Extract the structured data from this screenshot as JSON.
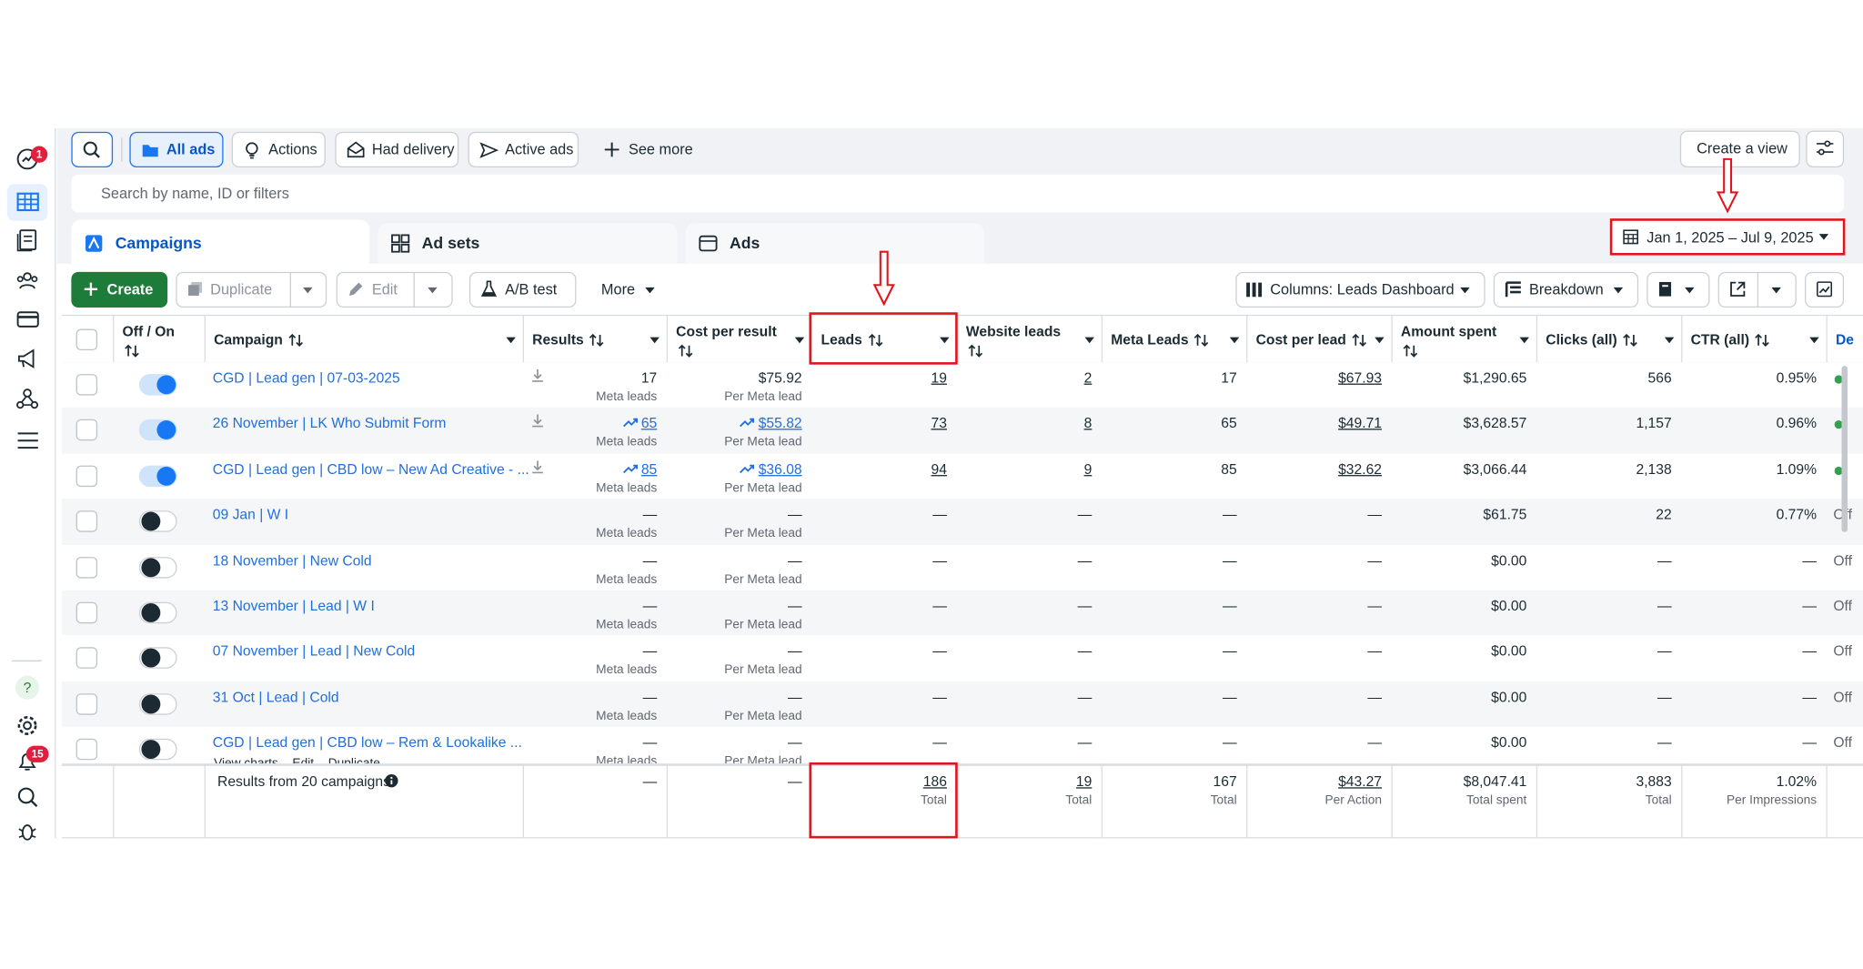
{
  "sidebar": {
    "notification_badge": "1",
    "alerts_badge": "15"
  },
  "toolbar": {
    "filters": [
      "All ads",
      "Actions",
      "Had delivery",
      "Active ads",
      "See more"
    ],
    "create_view": "Create a view"
  },
  "search_placeholder": "Search by name, ID or filters",
  "tabs": [
    "Campaigns",
    "Ad sets",
    "Ads"
  ],
  "date_range": "Jan 1, 2025 – Jul 9, 2025",
  "actions": {
    "create": "Create",
    "duplicate": "Duplicate",
    "edit": "Edit",
    "ab_test": "A/B test",
    "more": "More",
    "columns": "Columns: Leads Dashboard",
    "breakdown": "Breakdown"
  },
  "table": {
    "headers": [
      "Off / On",
      "Campaign",
      "Results",
      "Cost per result",
      "Leads",
      "Website leads",
      "Meta Leads",
      "Cost per lead",
      "Amount spent",
      "Clicks (all)",
      "CTR (all)",
      "De"
    ],
    "rows": [
      {
        "on": true,
        "trend": false,
        "campaign": "CGD | Lead gen | 07-03-2025",
        "results": "17",
        "results_label": "Meta leads",
        "cost_per_result": "$75.92",
        "cost_per_result_label": "Per Meta lead",
        "leads": "19",
        "website_leads": "2",
        "meta_leads": "17",
        "cost_per_lead": "$67.93",
        "amount_spent": "$1,290.65",
        "clicks": "566",
        "ctr": "0.95%"
      },
      {
        "on": true,
        "trend": true,
        "campaign": "26 November | LK Who Submit Form",
        "results": "65",
        "results_label": "Meta leads",
        "cost_per_result": "$55.82",
        "cost_per_result_label": "Per Meta lead",
        "leads": "73",
        "website_leads": "8",
        "meta_leads": "65",
        "cost_per_lead": "$49.71",
        "amount_spent": "$3,628.57",
        "clicks": "1,157",
        "ctr": "0.96%"
      },
      {
        "on": true,
        "trend": true,
        "campaign": "CGD | Lead gen | CBD low – New Ad Creative - ...",
        "results": "85",
        "results_label": "Meta leads",
        "cost_per_result": "$36.08",
        "cost_per_result_label": "Per Meta lead",
        "leads": "94",
        "website_leads": "9",
        "meta_leads": "85",
        "cost_per_lead": "$32.62",
        "amount_spent": "$3,066.44",
        "clicks": "2,138",
        "ctr": "1.09%"
      },
      {
        "on": false,
        "trend": false,
        "campaign": "09 Jan | W I",
        "results": "—",
        "results_label": "Meta leads",
        "cost_per_result": "—",
        "cost_per_result_label": "Per Meta lead",
        "leads": "—",
        "website_leads": "—",
        "meta_leads": "—",
        "cost_per_lead": "—",
        "amount_spent": "$61.75",
        "clicks": "22",
        "ctr": "0.77%",
        "delivery": "Off"
      },
      {
        "on": false,
        "trend": false,
        "campaign": "18 November | New Cold",
        "results": "—",
        "results_label": "Meta leads",
        "cost_per_result": "—",
        "cost_per_result_label": "Per Meta lead",
        "leads": "—",
        "website_leads": "—",
        "meta_leads": "—",
        "cost_per_lead": "—",
        "amount_spent": "$0.00",
        "clicks": "—",
        "ctr": "—",
        "delivery": "Off"
      },
      {
        "on": false,
        "trend": false,
        "campaign": "13 November | Lead | W I",
        "results": "—",
        "results_label": "Meta leads",
        "cost_per_result": "—",
        "cost_per_result_label": "Per Meta lead",
        "leads": "—",
        "website_leads": "—",
        "meta_leads": "—",
        "cost_per_lead": "—",
        "amount_spent": "$0.00",
        "clicks": "—",
        "ctr": "—",
        "delivery": "Off"
      },
      {
        "on": false,
        "trend": false,
        "campaign": "07 November | Lead | New Cold",
        "results": "—",
        "results_label": "Meta leads",
        "cost_per_result": "—",
        "cost_per_result_label": "Per Meta lead",
        "leads": "—",
        "website_leads": "—",
        "meta_leads": "—",
        "cost_per_lead": "—",
        "amount_spent": "$0.00",
        "clicks": "—",
        "ctr": "—",
        "delivery": "Off"
      },
      {
        "on": false,
        "trend": false,
        "campaign": "31 Oct | Lead | Cold",
        "results": "—",
        "results_label": "Meta leads",
        "cost_per_result": "—",
        "cost_per_result_label": "Per Meta lead",
        "leads": "—",
        "website_leads": "—",
        "meta_leads": "—",
        "cost_per_lead": "—",
        "amount_spent": "$0.00",
        "clicks": "—",
        "ctr": "—",
        "delivery": "Off"
      },
      {
        "on": false,
        "trend": false,
        "campaign": "CGD | Lead gen | CBD low – Rem & Lookalike ...",
        "actions": [
          "View charts",
          "Edit",
          "Duplicate"
        ],
        "results": "—",
        "results_label": "Meta leads",
        "cost_per_result": "—",
        "cost_per_result_label": "Per Meta lead",
        "leads": "—",
        "website_leads": "—",
        "meta_leads": "—",
        "cost_per_lead": "—",
        "amount_spent": "$0.00",
        "clicks": "—",
        "ctr": "—",
        "delivery": "Off"
      }
    ],
    "footer": {
      "label": "Results from 20 campaigns",
      "results": "—",
      "cost_per_result": "—",
      "leads": {
        "value": "186",
        "label": "Total"
      },
      "website_leads": {
        "value": "19",
        "label": "Total"
      },
      "meta_leads": {
        "value": "167",
        "label": "Total"
      },
      "cost_per_lead": {
        "value": "$43.27",
        "label": "Per Action"
      },
      "amount_spent": {
        "value": "$8,047.41",
        "label": "Total spent"
      },
      "clicks": {
        "value": "3,883",
        "label": "Total"
      },
      "ctr": {
        "value": "1.02%",
        "label": "Per Impressions"
      }
    }
  }
}
